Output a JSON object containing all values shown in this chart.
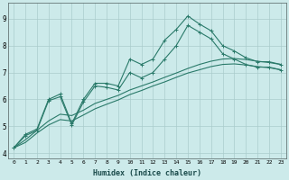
{
  "xlabel": "Humidex (Indice chaleur)",
  "background_color": "#cceaea",
  "grid_color": "#aacccc",
  "line_color": "#2a7a6a",
  "xlim": [
    -0.5,
    23.5
  ],
  "ylim": [
    3.8,
    9.6
  ],
  "xticks": [
    0,
    1,
    2,
    3,
    4,
    5,
    6,
    7,
    8,
    9,
    10,
    11,
    12,
    13,
    14,
    15,
    16,
    17,
    18,
    19,
    20,
    21,
    22,
    23
  ],
  "yticks": [
    4,
    5,
    6,
    7,
    8,
    9
  ],
  "series": {
    "line1_x": [
      0,
      1,
      2,
      3,
      4,
      5,
      6,
      7,
      8,
      9,
      10,
      11,
      12,
      13,
      14,
      15,
      16,
      17,
      18,
      19,
      20,
      21,
      22,
      23
    ],
    "line1_y": [
      4.2,
      4.7,
      4.9,
      6.0,
      6.2,
      5.1,
      6.0,
      6.6,
      6.6,
      6.5,
      7.5,
      7.3,
      7.5,
      8.2,
      8.6,
      9.1,
      8.8,
      8.55,
      8.0,
      7.8,
      7.55,
      7.4,
      7.4,
      7.3
    ],
    "line2_x": [
      0,
      1,
      2,
      3,
      4,
      5,
      6,
      7,
      8,
      9,
      10,
      11,
      12,
      13,
      14,
      15,
      16,
      17,
      18,
      19,
      20,
      21,
      22,
      23
    ],
    "line2_y": [
      4.2,
      4.65,
      4.85,
      5.95,
      6.1,
      5.05,
      5.9,
      6.5,
      6.45,
      6.35,
      7.0,
      6.8,
      7.0,
      7.5,
      8.0,
      8.75,
      8.5,
      8.25,
      7.7,
      7.5,
      7.3,
      7.2,
      7.2,
      7.1
    ],
    "line3_x": [
      0,
      1,
      2,
      3,
      4,
      5,
      6,
      7,
      8,
      9,
      10,
      11,
      12,
      13,
      14,
      15,
      16,
      17,
      18,
      19,
      20,
      21,
      22,
      23
    ],
    "line3_y": [
      4.2,
      4.5,
      4.85,
      5.2,
      5.45,
      5.4,
      5.6,
      5.85,
      6.0,
      6.15,
      6.35,
      6.5,
      6.65,
      6.82,
      6.98,
      7.15,
      7.3,
      7.42,
      7.5,
      7.52,
      7.48,
      7.42,
      7.37,
      7.3
    ],
    "line4_x": [
      0,
      1,
      2,
      3,
      4,
      5,
      6,
      7,
      8,
      9,
      10,
      11,
      12,
      13,
      14,
      15,
      16,
      17,
      18,
      19,
      20,
      21,
      22,
      23
    ],
    "line4_y": [
      4.2,
      4.4,
      4.75,
      5.05,
      5.25,
      5.2,
      5.42,
      5.65,
      5.82,
      5.98,
      6.18,
      6.33,
      6.5,
      6.65,
      6.82,
      6.98,
      7.1,
      7.22,
      7.3,
      7.32,
      7.28,
      7.22,
      7.18,
      7.1
    ]
  }
}
